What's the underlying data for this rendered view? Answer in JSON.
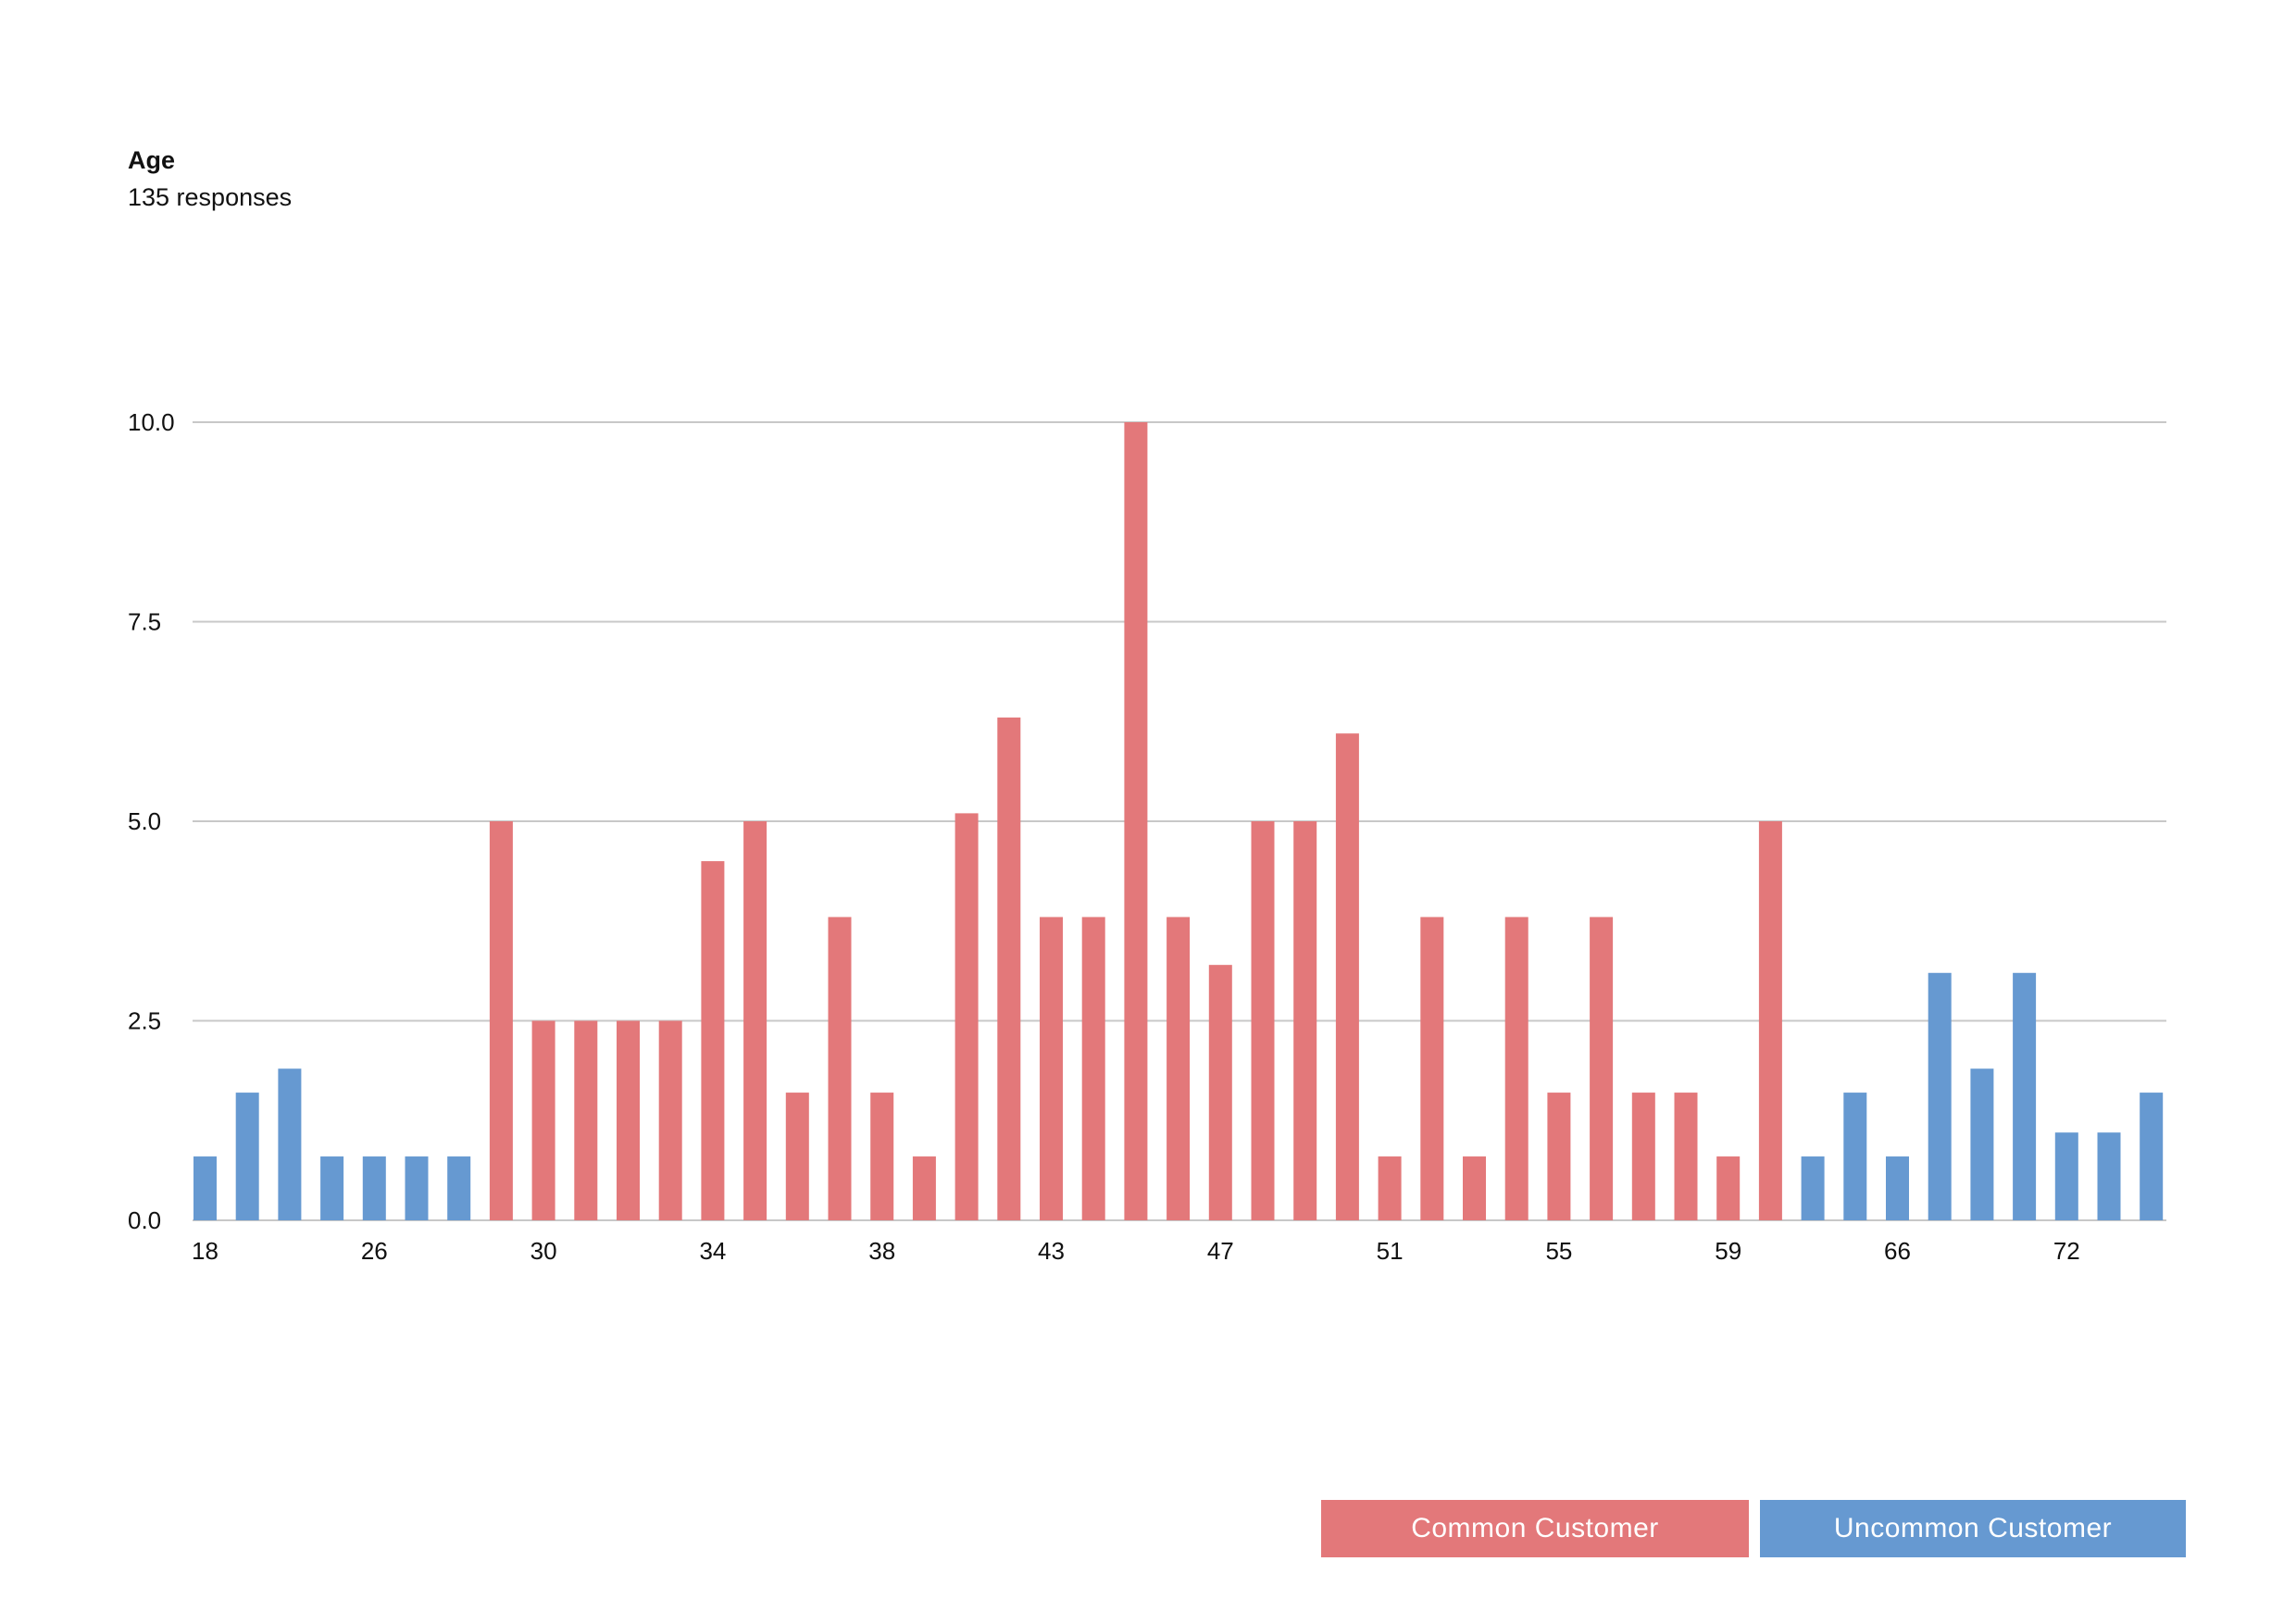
{
  "title": "Age",
  "subtitle": "135 responses",
  "colors": {
    "common": "#e3787a",
    "uncommon": "#6699d1",
    "grid": "#c8c8c8"
  },
  "legend": {
    "common_label": "Common Customer",
    "uncommon_label": "Uncommon Customer"
  },
  "chart_data": {
    "type": "bar",
    "title": "Age",
    "subtitle": "135 responses",
    "xlabel": "",
    "ylabel": "",
    "ylim": [
      0,
      10
    ],
    "yticks": [
      "0.0",
      "2.5",
      "5.0",
      "7.5",
      "10.0"
    ],
    "grid": true,
    "legend_position": "bottom-right",
    "x_tick_labels": [
      {
        "index": 0,
        "label": "18"
      },
      {
        "index": 4,
        "label": "26"
      },
      {
        "index": 8,
        "label": "30"
      },
      {
        "index": 12,
        "label": "34"
      },
      {
        "index": 16,
        "label": "38"
      },
      {
        "index": 20,
        "label": "43"
      },
      {
        "index": 24,
        "label": "47"
      },
      {
        "index": 28,
        "label": "51"
      },
      {
        "index": 32,
        "label": "55"
      },
      {
        "index": 36,
        "label": "59"
      },
      {
        "index": 40,
        "label": "66"
      },
      {
        "index": 44,
        "label": "72"
      }
    ],
    "values": [
      0.8,
      1.6,
      1.9,
      0.8,
      0.8,
      0.8,
      0.8,
      5.0,
      2.5,
      2.5,
      2.5,
      2.5,
      4.5,
      5.0,
      1.6,
      3.8,
      1.6,
      0.8,
      5.1,
      6.3,
      3.8,
      3.8,
      10.0,
      3.8,
      3.2,
      5.0,
      5.0,
      6.1,
      0.8,
      3.8,
      0.8,
      3.8,
      1.6,
      3.8,
      1.6,
      1.6,
      0.8,
      5.0,
      0.8,
      1.6,
      0.8,
      3.1,
      1.9,
      3.1,
      1.1,
      1.1,
      1.6
    ],
    "series_membership": [
      "uncommon",
      "uncommon",
      "uncommon",
      "uncommon",
      "uncommon",
      "uncommon",
      "uncommon",
      "common",
      "common",
      "common",
      "common",
      "common",
      "common",
      "common",
      "common",
      "common",
      "common",
      "common",
      "common",
      "common",
      "common",
      "common",
      "common",
      "common",
      "common",
      "common",
      "common",
      "common",
      "common",
      "common",
      "common",
      "common",
      "common",
      "common",
      "common",
      "common",
      "common",
      "common",
      "uncommon",
      "uncommon",
      "uncommon",
      "uncommon",
      "uncommon",
      "uncommon",
      "uncommon",
      "uncommon",
      "uncommon"
    ],
    "series": [
      {
        "name": "Common Customer",
        "key": "common"
      },
      {
        "name": "Uncommon Customer",
        "key": "uncommon"
      }
    ]
  }
}
